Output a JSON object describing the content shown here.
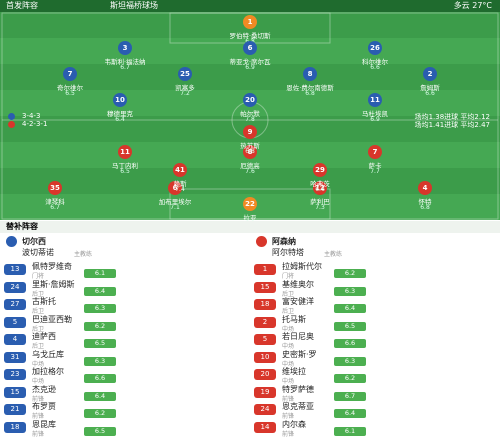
{
  "header": {
    "title": "首发阵容",
    "venue": "斯坦福桥球场",
    "weather": "多云 27°C"
  },
  "lineup": {
    "home": {
      "formation": "3-4-3",
      "stats": "场均1.38进球 平均2.12",
      "players": [
        {
          "number": 1,
          "name": "罗伯特·桑切斯",
          "rating": 6.8
        },
        {
          "number": 3,
          "name": "韦斯利·福法纳",
          "rating": 6.7
        },
        {
          "number": 6,
          "name": "蒂亚戈·席尔瓦",
          "rating": 6.9
        },
        {
          "number": 26,
          "name": "科尔维尔",
          "rating": 6.6
        },
        {
          "number": 7,
          "name": "奇尔维尔",
          "rating": 6.5
        },
        {
          "number": 25,
          "name": "凯塞多",
          "rating": 7.2
        },
        {
          "number": 8,
          "name": "恩佐·费尔南德斯",
          "rating": 6.8
        },
        {
          "number": 2,
          "name": "詹姆斯",
          "rating": 6.6
        },
        {
          "number": 10,
          "name": "穆德里克",
          "rating": 6.4
        },
        {
          "number": 20,
          "name": "帕尔默",
          "rating": 7.8
        },
        {
          "number": 11,
          "name": "马杜埃凯",
          "rating": 6.9
        }
      ]
    },
    "away": {
      "formation": "4-2-3-1",
      "stats": "场均1.41进球 平均2.47",
      "players": [
        {
          "number": 22,
          "name": "拉亚",
          "rating": 6.9
        },
        {
          "number": 35,
          "name": "津琴科",
          "rating": 6.7
        },
        {
          "number": 6,
          "name": "加布里埃尔",
          "rating": 7.1
        },
        {
          "number": 12,
          "name": "萨利巴",
          "rating": 7.3
        },
        {
          "number": 4,
          "name": "怀特",
          "rating": 6.8
        },
        {
          "number": 41,
          "name": "赖斯",
          "rating": 7.4
        },
        {
          "number": 29,
          "name": "哈弗茨",
          "rating": 6.6
        },
        {
          "number": 11,
          "name": "马丁内利",
          "rating": 6.5
        },
        {
          "number": 8,
          "name": "厄德高",
          "rating": 7.6
        },
        {
          "number": 7,
          "name": "萨卡",
          "rating": 7.7
        },
        {
          "number": 9,
          "name": "热苏斯",
          "rating": 6.8
        }
      ]
    }
  },
  "subs": {
    "title": "替补阵容",
    "coach_label": "主教练",
    "home": {
      "team": "切尔西",
      "coach": "波切蒂诺",
      "players": [
        {
          "number": 13,
          "name": "佩特罗维奇",
          "position": "门将",
          "rating": 6.1
        },
        {
          "number": 24,
          "name": "里斯·詹姆斯",
          "position": "后卫",
          "rating": 6.4
        },
        {
          "number": 27,
          "name": "古斯托",
          "position": "后卫",
          "rating": 6.3
        },
        {
          "number": 5,
          "name": "巴迪亚西勒",
          "position": "后卫",
          "rating": 6.2
        },
        {
          "number": 4,
          "name": "迪萨西",
          "position": "后卫",
          "rating": 6.5
        },
        {
          "number": 31,
          "name": "乌戈丘库",
          "position": "中场",
          "rating": 6.3
        },
        {
          "number": 23,
          "name": "加拉格尔",
          "position": "中场",
          "rating": 6.6
        },
        {
          "number": 15,
          "name": "杰克逊",
          "position": "前锋",
          "rating": 6.4
        },
        {
          "number": 21,
          "name": "布罗贾",
          "position": "前锋",
          "rating": 6.2
        },
        {
          "number": 18,
          "name": "恩昆库",
          "position": "前锋",
          "rating": 6.5
        }
      ]
    },
    "away": {
      "team": "阿森纳",
      "coach": "阿尔特塔",
      "players": [
        {
          "number": 1,
          "name": "拉姆斯代尔",
          "position": "门将",
          "rating": 6.2
        },
        {
          "number": 15,
          "name": "基维奥尔",
          "position": "后卫",
          "rating": 6.3
        },
        {
          "number": 18,
          "name": "富安健洋",
          "position": "后卫",
          "rating": 6.4
        },
        {
          "number": 2,
          "name": "托马斯",
          "position": "中场",
          "rating": 6.5
        },
        {
          "number": 5,
          "name": "若日尼奥",
          "position": "中场",
          "rating": 6.6
        },
        {
          "number": 10,
          "name": "史密斯·罗",
          "position": "中场",
          "rating": 6.3
        },
        {
          "number": 20,
          "name": "维埃拉",
          "position": "中场",
          "rating": 6.2
        },
        {
          "number": 19,
          "name": "特罗萨德",
          "position": "前锋",
          "rating": 6.7
        },
        {
          "number": 24,
          "name": "恩克蒂亚",
          "position": "前锋",
          "rating": 6.4
        },
        {
          "number": 14,
          "name": "内尔森",
          "position": "前锋",
          "rating": 6.1
        }
      ]
    }
  }
}
